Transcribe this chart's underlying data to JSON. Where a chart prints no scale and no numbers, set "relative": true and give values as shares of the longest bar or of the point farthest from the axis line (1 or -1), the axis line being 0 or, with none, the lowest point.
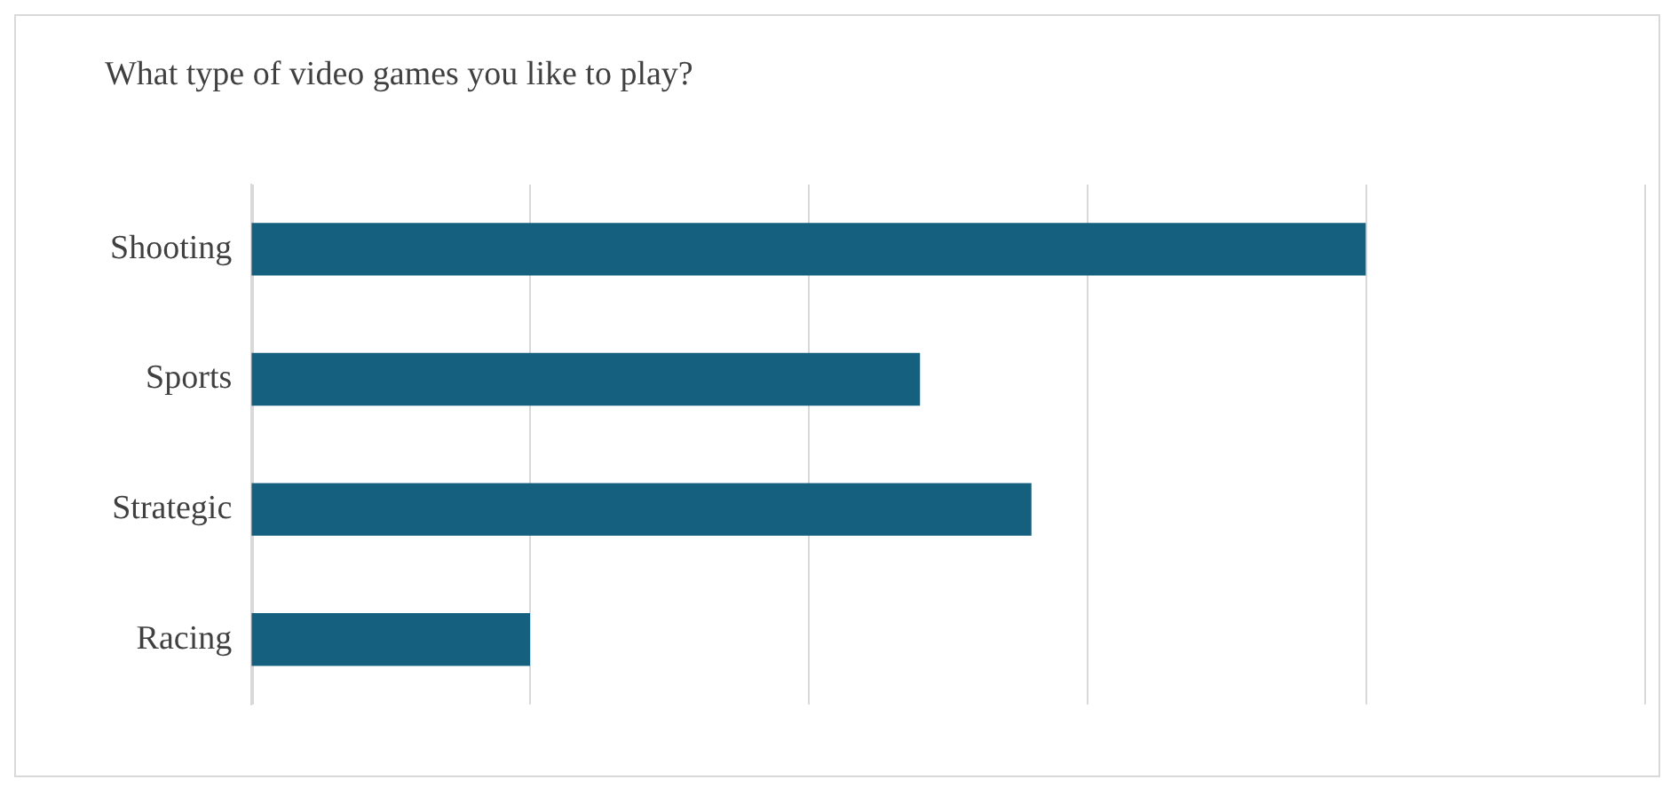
{
  "chart_data": {
    "type": "bar",
    "orientation": "horizontal",
    "relative": true,
    "title": "What type of video games you like to play?",
    "categories": [
      "Shooting",
      "Sports",
      "Strategic",
      "Racing"
    ],
    "values": [
      1,
      0.6,
      0.7,
      0.25
    ],
    "color": "#16607f",
    "legend": false
  }
}
